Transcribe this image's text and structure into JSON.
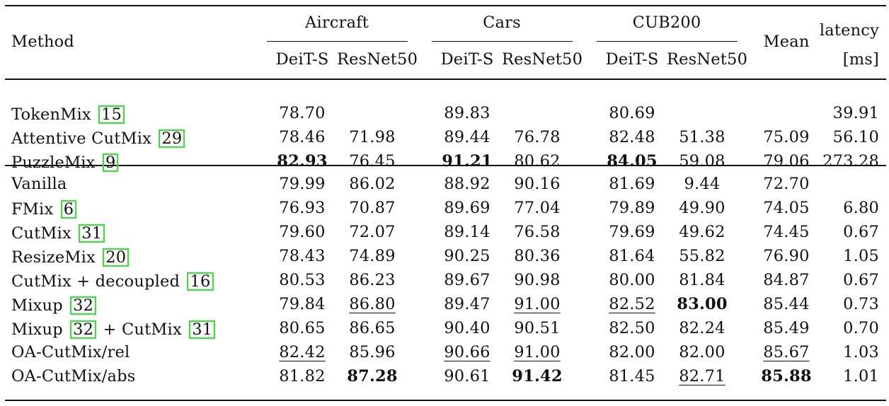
{
  "header": {
    "method": "Method",
    "groups": [
      "Aircraft",
      "Cars",
      "CUB200"
    ],
    "subcols": [
      "DeiT-S",
      "ResNet50",
      "DeiT-S",
      "ResNet50",
      "DeiT-S",
      "ResNet50"
    ],
    "mean": "Mean",
    "latency_line1": "latency",
    "latency_line2": "[ms]"
  },
  "rows": [
    {
      "parts": [
        {
          "text": "TokenMix "
        },
        {
          "cite": "15"
        }
      ],
      "vals": [
        "78.70",
        "",
        "89.83",
        "",
        "80.69",
        "",
        "",
        "39.91"
      ],
      "bold": [],
      "under": []
    },
    {
      "parts": [
        {
          "text": "Attentive CutMix "
        },
        {
          "cite": "29"
        }
      ],
      "vals": [
        "78.46",
        "71.98",
        "89.44",
        "76.78",
        "82.48",
        "51.38",
        "75.09",
        "56.10"
      ],
      "bold": [],
      "under": []
    },
    {
      "parts": [
        {
          "text": "PuzzleMix "
        },
        {
          "cite": "9"
        }
      ],
      "vals": [
        "82.93",
        "76.45",
        "91.21",
        "80.62",
        "84.05",
        "59.08",
        "79.06",
        "273.28"
      ],
      "bold": [
        0,
        2,
        4
      ],
      "under": []
    },
    {
      "parts": [
        {
          "text": "Vanilla"
        }
      ],
      "vals": [
        "79.99",
        "86.02",
        "88.92",
        "90.16",
        "81.69",
        "9.44",
        "72.70",
        ""
      ],
      "bold": [],
      "under": []
    },
    {
      "parts": [
        {
          "text": "FMix "
        },
        {
          "cite": "6"
        }
      ],
      "vals": [
        "76.93",
        "70.87",
        "89.69",
        "77.04",
        "79.89",
        "49.90",
        "74.05",
        "6.80"
      ],
      "bold": [],
      "under": []
    },
    {
      "parts": [
        {
          "text": "CutMix "
        },
        {
          "cite": "31"
        }
      ],
      "vals": [
        "79.60",
        "72.07",
        "89.14",
        "76.58",
        "79.69",
        "49.62",
        "74.45",
        "0.67"
      ],
      "bold": [],
      "under": []
    },
    {
      "parts": [
        {
          "text": "ResizeMix "
        },
        {
          "cite": "20"
        }
      ],
      "vals": [
        "78.43",
        "74.89",
        "90.25",
        "80.36",
        "81.64",
        "55.82",
        "76.90",
        "1.05"
      ],
      "bold": [],
      "under": []
    },
    {
      "parts": [
        {
          "text": "CutMix + decoupled "
        },
        {
          "cite": "16"
        }
      ],
      "vals": [
        "80.53",
        "86.23",
        "89.67",
        "90.98",
        "80.00",
        "81.84",
        "84.87",
        "0.67"
      ],
      "bold": [],
      "under": []
    },
    {
      "parts": [
        {
          "text": "Mixup "
        },
        {
          "cite": "32"
        }
      ],
      "vals": [
        "79.84",
        "86.80",
        "89.47",
        "91.00",
        "82.52",
        "83.00",
        "85.44",
        "0.73"
      ],
      "bold": [
        5
      ],
      "under": [
        1,
        3,
        4
      ]
    },
    {
      "parts": [
        {
          "text": "Mixup "
        },
        {
          "cite": "32"
        },
        {
          "text": " + CutMix "
        },
        {
          "cite": "31"
        }
      ],
      "vals": [
        "80.65",
        "86.65",
        "90.40",
        "90.51",
        "82.50",
        "82.24",
        "85.49",
        "0.70"
      ],
      "bold": [],
      "under": []
    },
    {
      "parts": [
        {
          "text": "OA-CutMix/rel"
        }
      ],
      "vals": [
        "82.42",
        "85.96",
        "90.66",
        "91.00",
        "82.00",
        "82.00",
        "85.67",
        "1.03"
      ],
      "bold": [],
      "under": [
        0,
        2,
        3,
        6
      ]
    },
    {
      "parts": [
        {
          "text": "OA-CutMix/abs"
        }
      ],
      "vals": [
        "81.82",
        "87.28",
        "90.61",
        "91.42",
        "81.45",
        "82.71",
        "85.88",
        "1.01"
      ],
      "bold": [
        1,
        3,
        6
      ],
      "under": [
        5
      ]
    }
  ]
}
